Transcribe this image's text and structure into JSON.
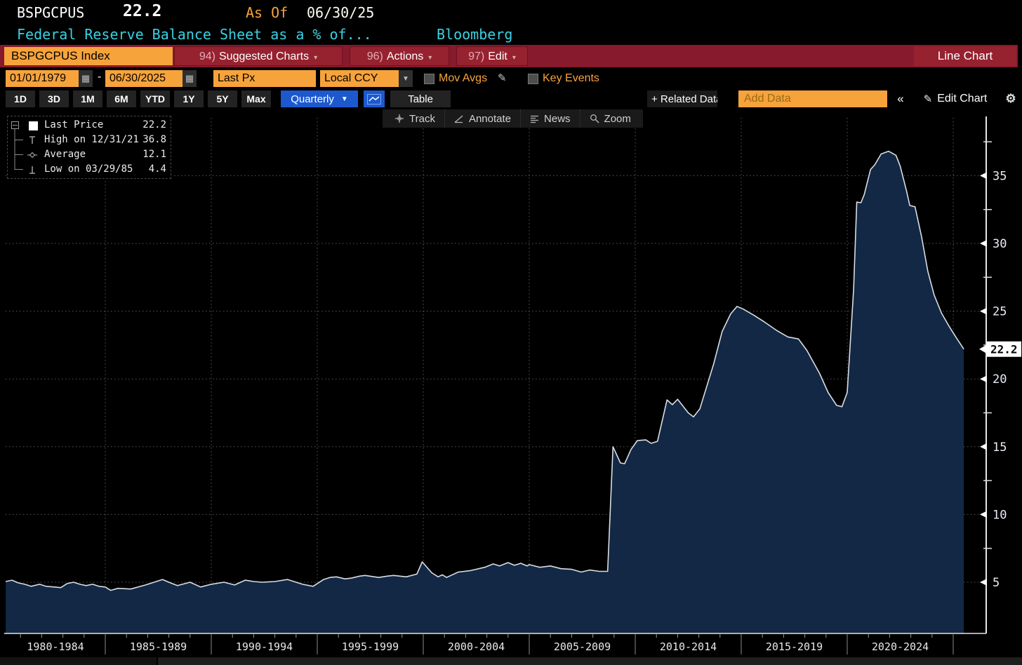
{
  "header": {
    "ticker": "BSPGCPUS",
    "last_value": "22.2",
    "as_of_label": "As Of",
    "as_of_date": "06/30/25",
    "description": "Federal Reserve Balance Sheet as a % of...",
    "source": "Bloomberg"
  },
  "command_bar": {
    "security": "BSPGCPUS Index",
    "menus": [
      {
        "num": "94)",
        "label": "Suggested Charts"
      },
      {
        "num": "96)",
        "label": "Actions"
      },
      {
        "num": "97)",
        "label": "Edit"
      }
    ],
    "chart_type": "Line Chart"
  },
  "controls": {
    "date_from": "01/01/1979",
    "date_sep": "-",
    "date_to": "06/30/2025",
    "price_field": "Last Px",
    "currency": "Local CCY",
    "mov_avgs": "Mov Avgs",
    "key_events": "Key Events"
  },
  "periods": {
    "buttons": [
      "1D",
      "3D",
      "1M",
      "6M",
      "YTD",
      "1Y",
      "5Y",
      "Max"
    ],
    "frequency": "Quarterly",
    "table": "Table",
    "related": "+ Related Data",
    "add_data_placeholder": "Add Data",
    "collapse": "«",
    "edit_chart": "Edit Chart"
  },
  "chart_tools": {
    "track": "Track",
    "annotate": "Annotate",
    "news": "News",
    "zoom": "Zoom"
  },
  "legend": {
    "rows": [
      {
        "label": "Last Price",
        "value": "22.2"
      },
      {
        "label": "High on 12/31/21",
        "value": "36.8"
      },
      {
        "label": "Average",
        "value": "12.1"
      },
      {
        "label": "Low on 03/29/85",
        "value": "4.4"
      }
    ]
  },
  "chart_data": {
    "type": "area",
    "title": "Federal Reserve Balance Sheet as a % of...",
    "x_segment_labels": [
      "1980-1984",
      "1985-1989",
      "1990-1994",
      "1995-1999",
      "2000-2004",
      "2005-2009",
      "2010-2014",
      "2015-2019",
      "2020-2024"
    ],
    "x_boundary_years": [
      1985,
      1990,
      1995,
      2000,
      2005,
      2010,
      2015,
      2020,
      2025
    ],
    "y_ticks": [
      5,
      10,
      15,
      20,
      25,
      30,
      35
    ],
    "y_minor_ticks": [
      7.5,
      12.5,
      17.5,
      22.5,
      27.5,
      32.5,
      37.5
    ],
    "xlim_years": [
      1980.3,
      2025.5
    ],
    "ylim": [
      3.2,
      38.8
    ],
    "grid": true,
    "legend_position": "top-left",
    "last_price": 22.2,
    "last_price_label": "22.2",
    "high": {
      "date": "12/31/21",
      "value": 36.8
    },
    "average": 12.1,
    "low": {
      "date": "03/29/85",
      "value": 4.4
    },
    "series": [
      {
        "name": "Last Price",
        "points": [
          [
            1980.3,
            5.05
          ],
          [
            1980.6,
            5.15
          ],
          [
            1980.9,
            4.95
          ],
          [
            1981.2,
            4.85
          ],
          [
            1981.5,
            4.7
          ],
          [
            1981.9,
            4.85
          ],
          [
            1982.2,
            4.7
          ],
          [
            1982.6,
            4.65
          ],
          [
            1982.9,
            4.6
          ],
          [
            1983.2,
            4.9
          ],
          [
            1983.5,
            5.0
          ],
          [
            1983.8,
            4.85
          ],
          [
            1984.1,
            4.75
          ],
          [
            1984.4,
            4.85
          ],
          [
            1984.7,
            4.7
          ],
          [
            1985.0,
            4.65
          ],
          [
            1985.25,
            4.4
          ],
          [
            1985.6,
            4.55
          ],
          [
            1986.2,
            4.5
          ],
          [
            1986.9,
            4.8
          ],
          [
            1987.3,
            5.0
          ],
          [
            1987.7,
            5.2
          ],
          [
            1988.0,
            5.0
          ],
          [
            1988.4,
            4.75
          ],
          [
            1989.0,
            5.0
          ],
          [
            1989.5,
            4.65
          ],
          [
            1990.0,
            4.85
          ],
          [
            1990.6,
            5.0
          ],
          [
            1991.1,
            4.8
          ],
          [
            1991.6,
            5.15
          ],
          [
            1992.0,
            5.05
          ],
          [
            1992.4,
            5.0
          ],
          [
            1993.0,
            5.05
          ],
          [
            1993.6,
            5.2
          ],
          [
            1994.3,
            4.85
          ],
          [
            1994.8,
            4.7
          ],
          [
            1995.3,
            5.2
          ],
          [
            1995.6,
            5.35
          ],
          [
            1995.9,
            5.4
          ],
          [
            1996.3,
            5.25
          ],
          [
            1996.6,
            5.3
          ],
          [
            1997.0,
            5.45
          ],
          [
            1997.25,
            5.5
          ],
          [
            1997.9,
            5.35
          ],
          [
            1998.3,
            5.45
          ],
          [
            1998.6,
            5.5
          ],
          [
            1999.2,
            5.4
          ],
          [
            1999.7,
            5.6
          ],
          [
            1999.95,
            6.5
          ],
          [
            2000.4,
            5.7
          ],
          [
            2000.7,
            5.4
          ],
          [
            2000.9,
            5.55
          ],
          [
            2001.1,
            5.35
          ],
          [
            2001.65,
            5.75
          ],
          [
            2002.2,
            5.85
          ],
          [
            2002.9,
            6.1
          ],
          [
            2003.3,
            6.35
          ],
          [
            2003.6,
            6.2
          ],
          [
            2004.0,
            6.45
          ],
          [
            2004.3,
            6.25
          ],
          [
            2004.6,
            6.4
          ],
          [
            2004.9,
            6.2
          ],
          [
            2005.0,
            6.3
          ],
          [
            2005.5,
            6.1
          ],
          [
            2006.0,
            6.2
          ],
          [
            2006.5,
            6.0
          ],
          [
            2007.0,
            5.95
          ],
          [
            2007.45,
            5.75
          ],
          [
            2007.85,
            5.9
          ],
          [
            2008.3,
            5.8
          ],
          [
            2008.7,
            5.8
          ],
          [
            2008.95,
            15.0
          ],
          [
            2009.3,
            13.8
          ],
          [
            2009.5,
            13.75
          ],
          [
            2009.8,
            14.8
          ],
          [
            2010.1,
            15.45
          ],
          [
            2010.5,
            15.5
          ],
          [
            2010.75,
            15.25
          ],
          [
            2011.05,
            15.4
          ],
          [
            2011.5,
            18.45
          ],
          [
            2011.75,
            18.1
          ],
          [
            2012.0,
            18.5
          ],
          [
            2012.5,
            17.5
          ],
          [
            2012.75,
            17.2
          ],
          [
            2013.05,
            17.8
          ],
          [
            2013.7,
            21.1
          ],
          [
            2014.1,
            23.5
          ],
          [
            2014.5,
            24.8
          ],
          [
            2014.8,
            25.35
          ],
          [
            2015.1,
            25.15
          ],
          [
            2015.6,
            24.7
          ],
          [
            2016.1,
            24.2
          ],
          [
            2016.7,
            23.55
          ],
          [
            2017.2,
            23.1
          ],
          [
            2017.7,
            22.95
          ],
          [
            2018.1,
            22.1
          ],
          [
            2018.7,
            20.4
          ],
          [
            2019.1,
            19.0
          ],
          [
            2019.5,
            18.05
          ],
          [
            2019.75,
            17.95
          ],
          [
            2020.0,
            19.0
          ],
          [
            2020.3,
            26.6
          ],
          [
            2020.45,
            33.05
          ],
          [
            2020.65,
            33.0
          ],
          [
            2020.8,
            33.6
          ],
          [
            2021.1,
            35.45
          ],
          [
            2021.3,
            35.8
          ],
          [
            2021.6,
            36.6
          ],
          [
            2021.95,
            36.8
          ],
          [
            2022.3,
            36.5
          ],
          [
            2022.5,
            35.7
          ],
          [
            2022.8,
            33.85
          ],
          [
            2022.95,
            32.8
          ],
          [
            2023.2,
            32.7
          ],
          [
            2023.5,
            30.55
          ],
          [
            2023.8,
            27.95
          ],
          [
            2024.1,
            26.2
          ],
          [
            2024.45,
            24.85
          ],
          [
            2024.8,
            23.9
          ],
          [
            2025.1,
            23.15
          ],
          [
            2025.5,
            22.2
          ]
        ]
      }
    ],
    "colors": {
      "fill": "#122845",
      "line": "#d9dde3",
      "grid": "#97a0ae",
      "axis": "#e6e6e6",
      "tag_bg": "#ffffff",
      "tag_text": "#000000",
      "label": "#e9edf4",
      "accent_orange": "#f7a33b",
      "bar_red": "#871a2c",
      "button_blue": "#1c59cf",
      "cyan": "#38d2e4"
    }
  }
}
